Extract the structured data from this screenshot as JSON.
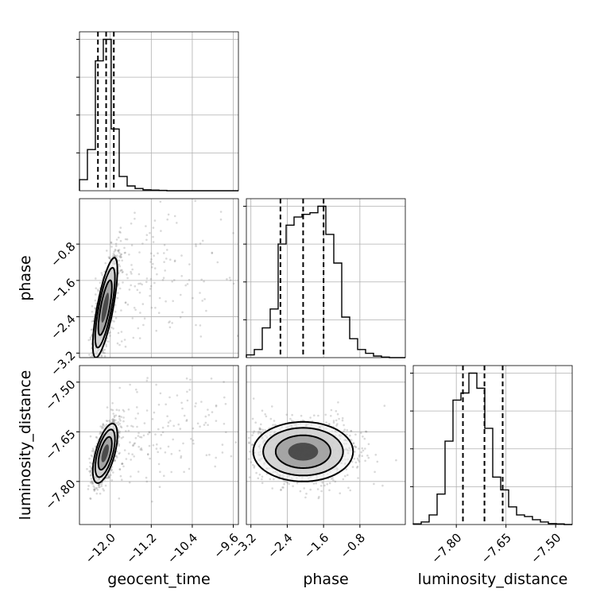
{
  "chart_data": {
    "type": "corner",
    "parameters": [
      "geocent_time",
      "phase",
      "luminosity_distance"
    ],
    "ranges": {
      "geocent_time": [
        -12.6,
        -9.5
      ],
      "phase": [
        -3.3,
        0.2
      ],
      "luminosity_distance": [
        -7.93,
        -7.45
      ]
    },
    "ticks": {
      "geocent_time": [
        -12.0,
        -11.2,
        -10.4,
        -9.6
      ],
      "phase": [
        -3.2,
        -2.4,
        -1.6,
        -0.8
      ],
      "luminosity_distance": [
        -7.8,
        -7.65,
        -7.5
      ]
    },
    "tick_labels": {
      "geocent_time": [
        "−12.0",
        "−11.2",
        "−10.4",
        "−9.6"
      ],
      "phase": [
        "−3.2",
        "−2.4",
        "−1.6",
        "−0.8"
      ],
      "luminosity_distance": [
        "−7.80",
        "−7.65",
        "−7.50"
      ]
    },
    "quantiles": {
      "geocent_time": [
        -12.24,
        -12.08,
        -11.93
      ],
      "phase": [
        -2.55,
        -2.05,
        -1.6
      ],
      "luminosity_distance": [
        -7.78,
        -7.715,
        -7.66
      ]
    },
    "histograms": {
      "geocent_time": {
        "edges": [
          -12.6,
          -12.445,
          -12.29,
          -12.135,
          -11.98,
          -11.825,
          -11.67,
          -11.515,
          -11.36,
          -11.205,
          -11.05,
          -10.895,
          -10.74,
          -10.585,
          -10.43,
          -10.275,
          -10.12,
          -9.965,
          -9.81,
          -9.655,
          -9.5
        ],
        "counts": [
          35,
          130,
          410,
          478,
          195,
          45,
          15,
          7,
          3,
          2,
          1,
          0,
          0,
          0,
          0,
          0,
          0,
          0,
          0,
          0
        ]
      },
      "phase": {
        "edges": [
          -3.3,
          -3.125,
          -2.95,
          -2.775,
          -2.6,
          -2.425,
          -2.25,
          -2.075,
          -1.9,
          -1.725,
          -1.55,
          -1.375,
          -1.2,
          -1.025,
          -0.85,
          -0.675,
          -0.5,
          -0.325,
          -0.15,
          0.025,
          0.2
        ],
        "counts": [
          5,
          15,
          55,
          90,
          210,
          245,
          260,
          265,
          268,
          280,
          228,
          175,
          75,
          35,
          15,
          8,
          3,
          1,
          0,
          0
        ]
      },
      "luminosity_distance": {
        "edges": [
          -7.93,
          -7.906,
          -7.882,
          -7.858,
          -7.834,
          -7.81,
          -7.786,
          -7.762,
          -7.738,
          -7.714,
          -7.69,
          -7.666,
          -7.642,
          -7.618,
          -7.594,
          -7.57,
          -7.546,
          -7.522,
          -7.498,
          -7.474,
          -7.45
        ],
        "counts": [
          2,
          8,
          30,
          95,
          260,
          388,
          410,
          472,
          425,
          300,
          148,
          108,
          55,
          30,
          25,
          15,
          8,
          3,
          2,
          0
        ]
      }
    },
    "pairs": [
      {
        "x": "geocent_time",
        "y": "phase",
        "center": [
          -12.1,
          -2.2
        ],
        "sigma": [
          0.12,
          0.55
        ],
        "correlation": 0.75,
        "tail_fraction": 0.12
      },
      {
        "x": "geocent_time",
        "y": "luminosity_distance",
        "center": [
          -12.1,
          -7.715
        ],
        "sigma": [
          0.12,
          0.045
        ],
        "correlation": 0.6,
        "tail_fraction": 0.12
      },
      {
        "x": "phase",
        "y": "luminosity_distance",
        "center": [
          -2.05,
          -7.71
        ],
        "sigma": [
          0.55,
          0.045
        ],
        "correlation": 0.0,
        "tail_fraction": 0.02
      }
    ],
    "contour_levels": [
      0.118,
      0.393,
      0.675,
      0.864
    ],
    "grid": true
  }
}
